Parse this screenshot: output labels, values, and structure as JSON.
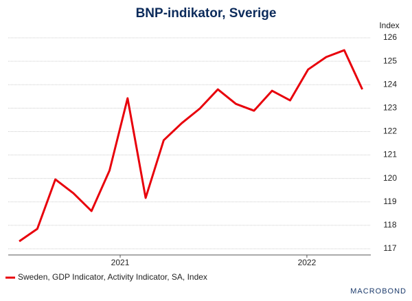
{
  "chart_data": {
    "type": "line",
    "title": "BNP-indikator, Sverige",
    "y_axis_label": "Index",
    "x": [
      0,
      1,
      2,
      3,
      4,
      5,
      6,
      7,
      8,
      9,
      10,
      11,
      12,
      13,
      14,
      15,
      16,
      17,
      18,
      19
    ],
    "series": [
      {
        "name": "Sweden, GDP Indicator, Activity Indicator, SA, Index",
        "color": "#e8000b",
        "values": [
          117.32,
          117.85,
          119.96,
          119.37,
          118.61,
          120.34,
          123.42,
          119.17,
          121.63,
          122.36,
          122.98,
          123.8,
          123.18,
          122.89,
          123.74,
          123.33,
          124.65,
          125.18,
          125.47,
          123.8
        ]
      }
    ],
    "xlim": [
      -0.61,
      19.47
    ],
    "xticks": [
      {
        "value": 5.59,
        "label": "2021"
      },
      {
        "value": 15.93,
        "label": "2022"
      }
    ],
    "ylim": [
      117,
      126
    ],
    "yticks": [
      117,
      118,
      119,
      120,
      121,
      122,
      123,
      124,
      125,
      126
    ],
    "grid": true,
    "legend": "bottom-left",
    "logo": "MACROBOND"
  }
}
